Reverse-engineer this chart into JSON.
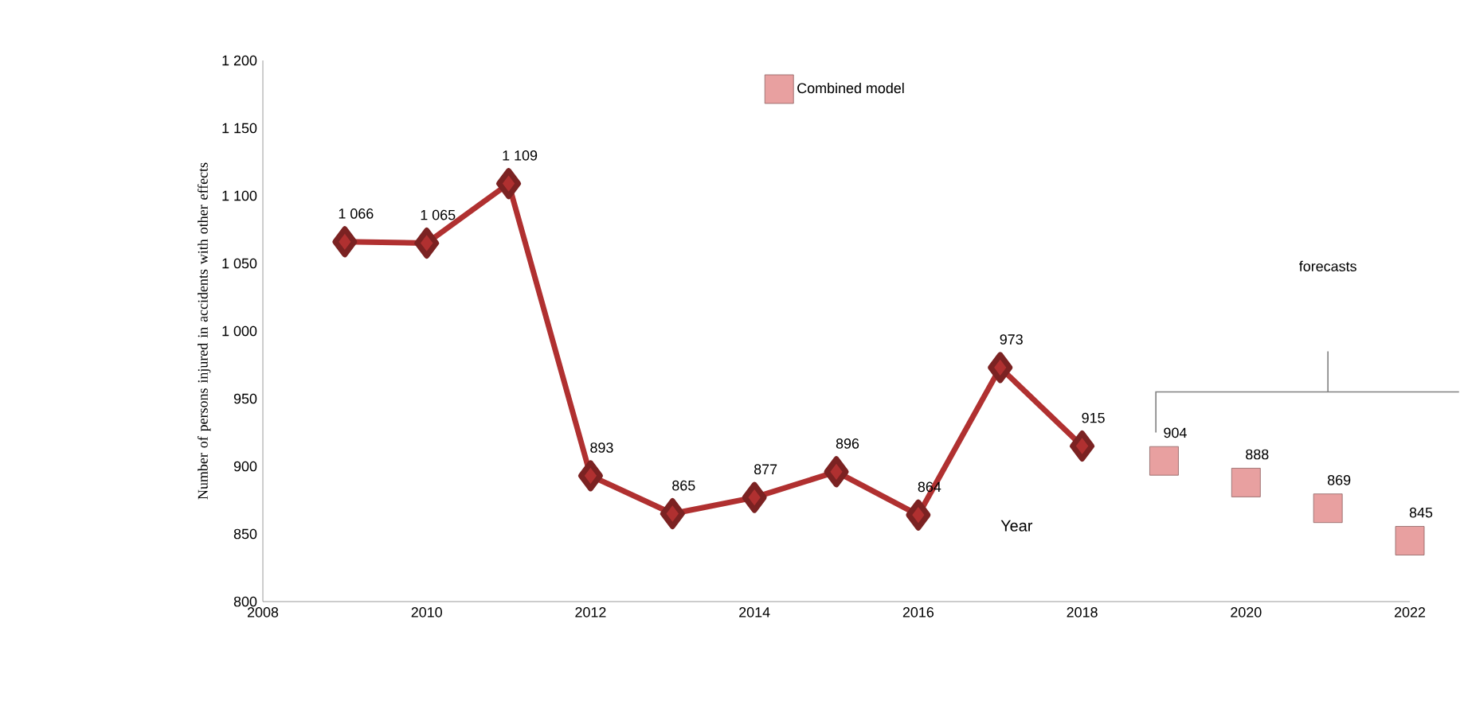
{
  "chart_data": {
    "type": "line",
    "ylabel": "Number of persons injured in accidents with other effects",
    "xlabel": "Year",
    "xlim": [
      2008,
      2022
    ],
    "xticks": [
      2008,
      2010,
      2012,
      2014,
      2016,
      2018,
      2020,
      2022
    ],
    "ylim": [
      800,
      1200
    ],
    "yticks": [
      {
        "value": 800,
        "label": "800"
      },
      {
        "value": 850,
        "label": "850"
      },
      {
        "value": 900,
        "label": "900"
      },
      {
        "value": 950,
        "label": "950"
      },
      {
        "value": 1000,
        "label": "1 000"
      },
      {
        "value": 1050,
        "label": "1 050"
      },
      {
        "value": 1100,
        "label": "1 100"
      },
      {
        "value": 1150,
        "label": "1 150"
      },
      {
        "value": 1200,
        "label": "1 200"
      }
    ],
    "grid": false,
    "legend": "top",
    "series": [
      {
        "color": "#b03030",
        "marker": "diamond",
        "line_style": "solid",
        "x": [
          2009,
          2010,
          2011,
          2012,
          2013,
          2014,
          2015,
          2016,
          2017,
          2018
        ],
        "values": [
          1066,
          1065,
          1109,
          893,
          865,
          877,
          896,
          864,
          973,
          915
        ],
        "value_labels": [
          "1 066",
          "1 065",
          "1 109",
          "893",
          "865",
          "877",
          "896",
          "864",
          "973",
          "915"
        ]
      },
      {
        "type": "scatter",
        "name": "Combined model",
        "color": "#e8a0a0",
        "marker": "square",
        "x": [
          2019,
          2020,
          2021,
          2022
        ],
        "values": [
          904,
          888,
          869,
          845
        ],
        "value_labels": [
          "904",
          "888",
          "869",
          "845"
        ]
      }
    ],
    "annotations": [
      "forecasts"
    ]
  }
}
